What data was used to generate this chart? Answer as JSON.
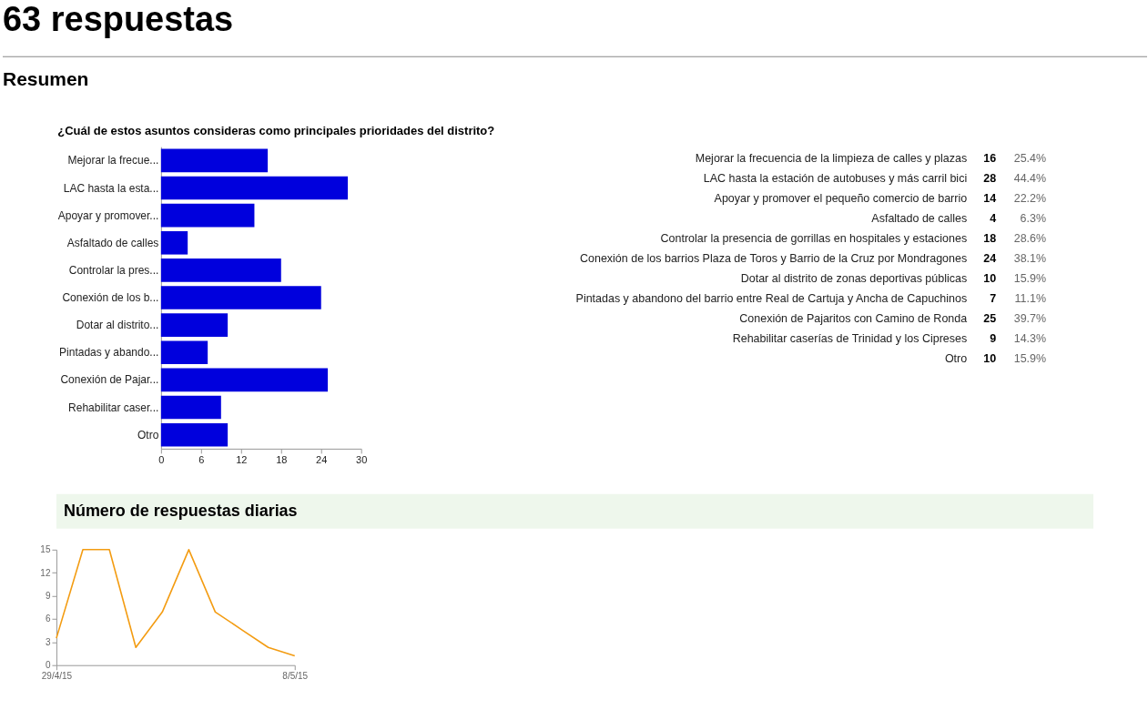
{
  "chart_data": [
    {
      "type": "bar",
      "orientation": "horizontal",
      "title": "¿Cuál de estos asuntos consideras como principales prioridades del distrito?",
      "categories": [
        "Mejorar la frecue...",
        "LAC hasta la esta...",
        "Apoyar y promover...",
        "Asfaltado de calles",
        "Controlar la pres...",
        "Conexión de los b...",
        "Dotar al distrito...",
        "Pintadas y abando...",
        "Conexión de Pajar...",
        "Rehabilitar caser...",
        "Otro"
      ],
      "values": [
        16,
        28,
        14,
        4,
        18,
        24,
        10,
        7,
        25,
        9,
        10
      ],
      "color": "#0000dd",
      "xlim": [
        0,
        30
      ],
      "xticks": [
        0,
        6,
        12,
        18,
        24,
        30
      ],
      "grid": false,
      "annotations": [
        "63 respuestas",
        "Resumen"
      ]
    },
    {
      "type": "other",
      "categories": [
        "Mejorar la frecuencia de la limpieza de calles y plazas",
        "LAC hasta la estación de autobuses y más carril bici",
        "Apoyar y promover el pequeño comercio de barrio",
        "Asfaltado de calles",
        "Controlar la presencia de gorrillas en hospitales y estaciones",
        "Conexión de los barrios Plaza de Toros y Barrio de la Cruz por Mondragones",
        "Dotar al distrito de zonas deportivas públicas",
        "Pintadas y abandono del barrio entre Real de Cartuja y Ancha de Capuchinos",
        "Conexión de Pajaritos con Camino de Ronda",
        "Rehabilitar caserías de Trinidad y los Cipreses",
        "Otro"
      ],
      "values": [
        16,
        28,
        14,
        4,
        18,
        24,
        10,
        7,
        25,
        9,
        10
      ],
      "data_labels": true,
      "annotations": [
        "25.4%",
        "44.4%",
        "22.2%",
        "6.3%",
        "28.6%",
        "38.1%",
        "15.9%",
        "11.1%",
        "39.7%",
        "14.3%",
        "15.9%"
      ]
    },
    {
      "type": "line",
      "title": "Número de respuestas diarias",
      "x": [
        "2015-04-29",
        "2015-04-30",
        "2015-05-01",
        "2015-05-02",
        "2015-05-03",
        "2015-05-04",
        "2015-05-05",
        "2015-05-06",
        "2015-05-07",
        "2015-05-08"
      ],
      "values": [
        3.5,
        15,
        15,
        2.3,
        6.9,
        15,
        6.9,
        4.6,
        2.3,
        1.2
      ],
      "color": "#f39c12",
      "line_style": "solid",
      "grid": false,
      "xlim": [
        "2015-04-29",
        "2015-05-08"
      ],
      "xticks": [
        {
          "value": "2015-04-29",
          "label": "29/4/15"
        },
        {
          "value": "2015-05-08",
          "label": "8/5/15"
        }
      ],
      "ylim": [
        0,
        15
      ],
      "yticks": [
        0,
        3,
        6,
        9,
        12,
        15
      ]
    }
  ]
}
